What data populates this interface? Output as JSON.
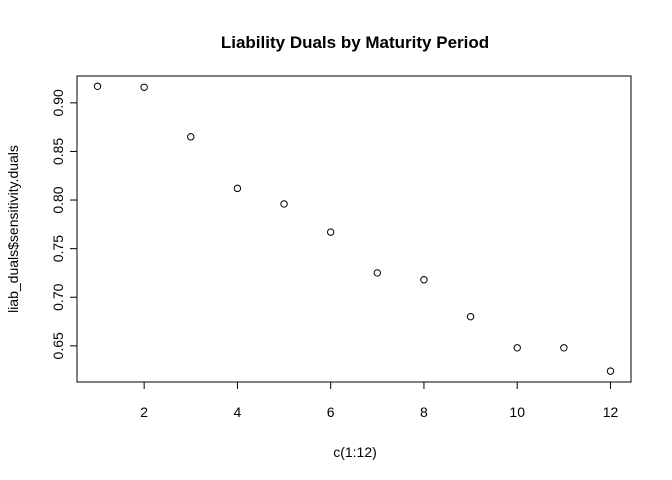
{
  "chart_data": {
    "type": "scatter",
    "title": "Liability Duals by Maturity Period",
    "xlabel": "c(1:12)",
    "ylabel": "liab_duals$sensitivity.duals",
    "x": [
      1,
      2,
      3,
      4,
      5,
      6,
      7,
      8,
      9,
      10,
      11,
      12
    ],
    "y": [
      0.917,
      0.916,
      0.865,
      0.812,
      0.796,
      0.767,
      0.725,
      0.718,
      0.68,
      0.648,
      0.648,
      0.624
    ],
    "xlim": [
      0.56,
      12.44
    ],
    "ylim": [
      0.6128,
      0.9276
    ],
    "x_ticks": [
      2,
      4,
      6,
      8,
      10,
      12
    ],
    "x_tick_labels": [
      "2",
      "4",
      "6",
      "8",
      "10",
      "12"
    ],
    "y_ticks": [
      0.65,
      0.7,
      0.75,
      0.8,
      0.85,
      0.9
    ],
    "y_tick_labels": [
      "0.65",
      "0.70",
      "0.75",
      "0.80",
      "0.85",
      "0.90"
    ],
    "grid": false,
    "legend": "none",
    "marker": "open-circle",
    "color": "#000000"
  }
}
